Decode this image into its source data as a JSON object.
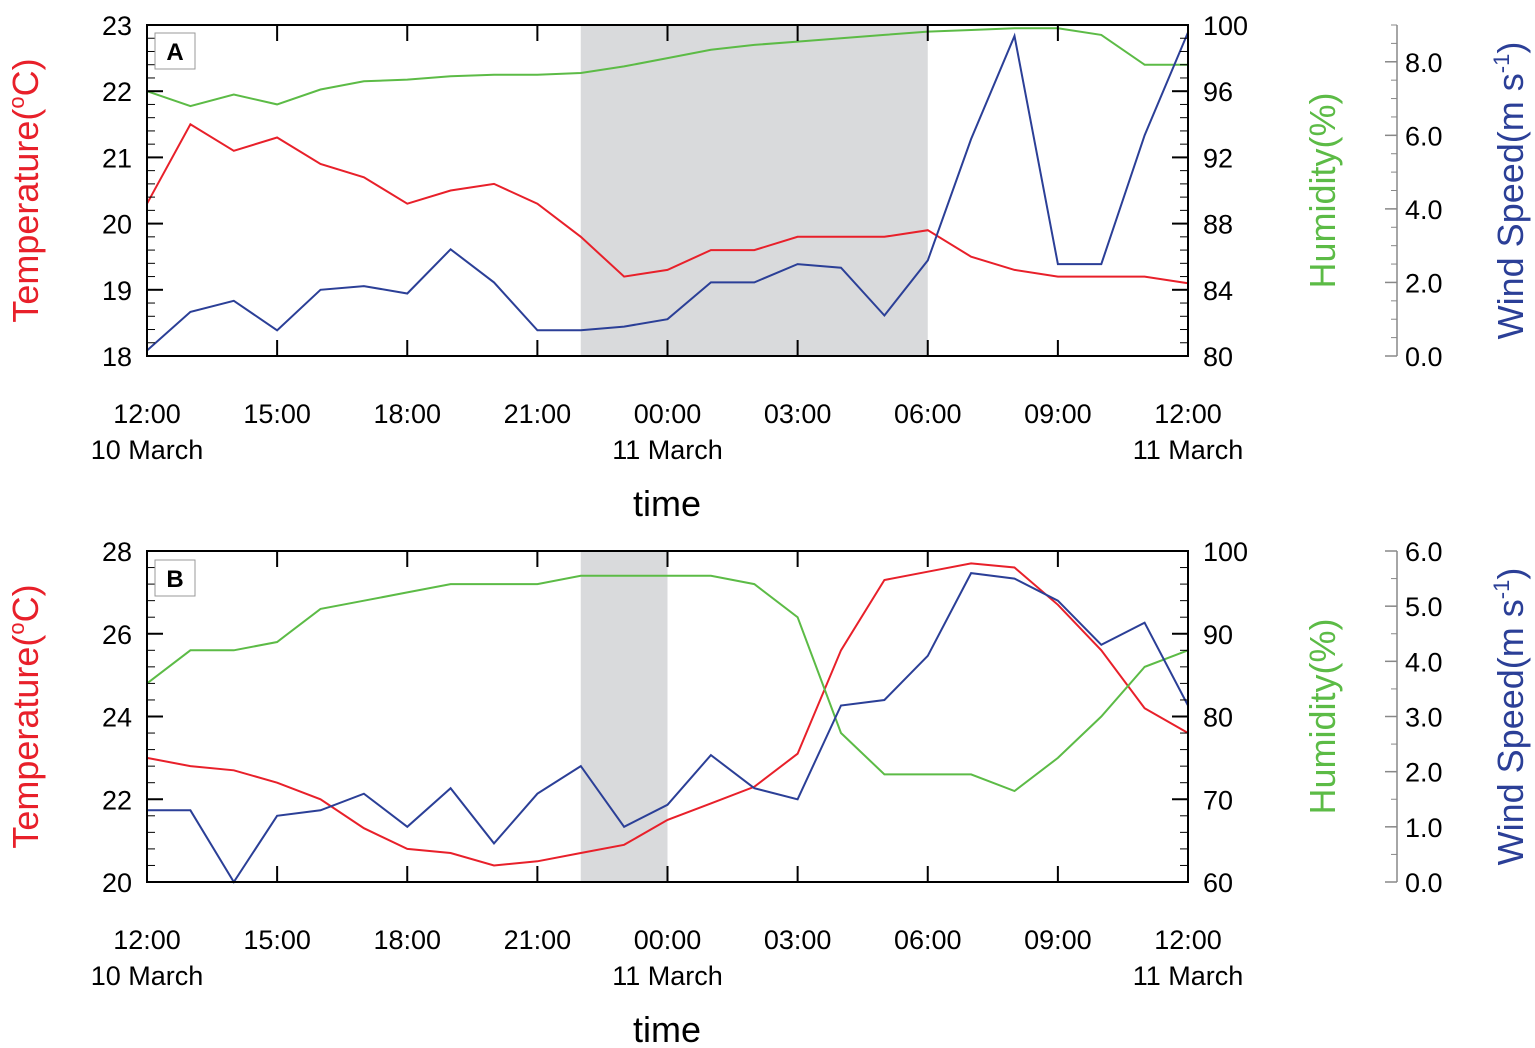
{
  "colors": {
    "temperature": "#e8202a",
    "humidity": "#5cbb46",
    "wind": "#2b3f97",
    "shade": "#d9dadc",
    "axis": "#000000",
    "wind_axis": "#888888"
  },
  "chart_data": [
    {
      "type": "line",
      "panel_label": "A",
      "x": [
        "12:00",
        "13:00",
        "14:00",
        "15:00",
        "16:00",
        "17:00",
        "18:00",
        "19:00",
        "20:00",
        "21:00",
        "22:00",
        "23:00",
        "00:00",
        "01:00",
        "02:00",
        "03:00",
        "04:00",
        "05:00",
        "06:00",
        "07:00",
        "08:00",
        "09:00",
        "10:00",
        "11:00",
        "12:00"
      ],
      "xlabel": "time",
      "x_tick_labels": [
        {
          "index": 0,
          "time": "12:00",
          "date": "10 March"
        },
        {
          "index": 3,
          "time": "15:00",
          "date": ""
        },
        {
          "index": 6,
          "time": "18:00",
          "date": ""
        },
        {
          "index": 9,
          "time": "21:00",
          "date": ""
        },
        {
          "index": 12,
          "time": "00:00",
          "date": "11 March"
        },
        {
          "index": 15,
          "time": "03:00",
          "date": ""
        },
        {
          "index": 18,
          "time": "06:00",
          "date": ""
        },
        {
          "index": 21,
          "time": "09:00",
          "date": ""
        },
        {
          "index": 24,
          "time": "12:00",
          "date": "11 March"
        }
      ],
      "shaded_period": [
        "22:00",
        "06:00"
      ],
      "series": [
        {
          "name": "Temperature",
          "axis": "left",
          "values": [
            20.3,
            21.5,
            21.1,
            21.3,
            20.9,
            20.7,
            20.3,
            20.5,
            20.6,
            20.3,
            19.8,
            19.2,
            19.3,
            19.6,
            19.6,
            19.8,
            19.8,
            19.8,
            19.9,
            19.5,
            19.3,
            19.2,
            19.2,
            19.2,
            19.1
          ]
        },
        {
          "name": "Humidity",
          "axis": "right",
          "values": [
            96.0,
            95.1,
            95.8,
            95.2,
            96.1,
            96.6,
            96.7,
            96.9,
            97.0,
            97.0,
            97.1,
            97.5,
            98.0,
            98.5,
            98.8,
            99.0,
            99.2,
            99.4,
            99.6,
            99.7,
            99.8,
            99.8,
            99.4,
            97.6,
            97.6
          ]
        },
        {
          "name": "Wind Speed",
          "axis": "far-right",
          "values": [
            0.15,
            1.2,
            1.5,
            0.7,
            1.8,
            1.9,
            1.7,
            2.9,
            2.0,
            0.7,
            0.7,
            0.8,
            1.0,
            2.0,
            2.0,
            2.5,
            2.4,
            1.1,
            2.6,
            5.9,
            8.7,
            2.5,
            2.5,
            6.0,
            8.8
          ]
        }
      ],
      "axes": {
        "left": {
          "label": "Temperature(°C)",
          "label_main": "Temperature(",
          "label_sup": "o",
          "label_end": "C)",
          "range": [
            18,
            23
          ],
          "ticks": [
            "18",
            "19",
            "20",
            "21",
            "22",
            "23"
          ]
        },
        "right": {
          "label": "Humidity(%)",
          "range": [
            80,
            100
          ],
          "ticks": [
            "80",
            "84",
            "88",
            "92",
            "96",
            "100"
          ]
        },
        "far_right": {
          "label": "Wind Speed(m s⁻¹)",
          "label_main": "Wind Speed(m s",
          "label_sup": "-1",
          "label_end": ")",
          "range": [
            0,
            9
          ],
          "ticks": [
            "0.0",
            "2.0",
            "4.0",
            "6.0",
            "8.0"
          ]
        }
      }
    },
    {
      "type": "line",
      "panel_label": "B",
      "x": [
        "12:00",
        "13:00",
        "14:00",
        "15:00",
        "16:00",
        "17:00",
        "18:00",
        "19:00",
        "20:00",
        "21:00",
        "22:00",
        "23:00",
        "00:00",
        "01:00",
        "02:00",
        "03:00",
        "04:00",
        "05:00",
        "06:00",
        "07:00",
        "08:00",
        "09:00",
        "10:00",
        "11:00",
        "12:00"
      ],
      "xlabel": "time",
      "x_tick_labels": [
        {
          "index": 0,
          "time": "12:00",
          "date": "10 March"
        },
        {
          "index": 3,
          "time": "15:00",
          "date": ""
        },
        {
          "index": 6,
          "time": "18:00",
          "date": ""
        },
        {
          "index": 9,
          "time": "21:00",
          "date": ""
        },
        {
          "index": 12,
          "time": "00:00",
          "date": "11 March"
        },
        {
          "index": 15,
          "time": "03:00",
          "date": ""
        },
        {
          "index": 18,
          "time": "06:00",
          "date": ""
        },
        {
          "index": 21,
          "time": "09:00",
          "date": ""
        },
        {
          "index": 24,
          "time": "12:00",
          "date": "11 March"
        }
      ],
      "shaded_period": [
        "22:00",
        "00:00"
      ],
      "series": [
        {
          "name": "Temperature",
          "axis": "left",
          "values": [
            23.0,
            22.8,
            22.7,
            22.4,
            22.0,
            21.3,
            20.8,
            20.7,
            20.4,
            20.5,
            20.7,
            20.9,
            21.5,
            21.9,
            22.3,
            23.1,
            25.6,
            27.3,
            27.5,
            27.7,
            27.6,
            26.7,
            25.6,
            24.2,
            23.6
          ]
        },
        {
          "name": "Humidity",
          "axis": "right",
          "values": [
            84,
            88,
            88,
            89,
            93,
            94,
            95,
            96,
            96,
            96,
            97,
            97,
            97,
            97,
            96,
            92,
            78,
            73,
            73,
            73,
            71,
            75,
            80,
            86,
            88
          ]
        },
        {
          "name": "Wind Speed",
          "axis": "far-right",
          "values": [
            1.3,
            1.3,
            0.0,
            1.2,
            1.3,
            1.6,
            1.0,
            1.7,
            0.7,
            1.6,
            2.1,
            1.0,
            1.4,
            2.3,
            1.7,
            1.5,
            3.2,
            3.3,
            4.1,
            5.6,
            5.5,
            5.1,
            4.3,
            4.7,
            3.2
          ]
        }
      ],
      "axes": {
        "left": {
          "label": "Temperature(°C)",
          "label_main": "Temperature(",
          "label_sup": "o",
          "label_end": "C)",
          "range": [
            20,
            28
          ],
          "ticks": [
            "20",
            "22",
            "24",
            "26",
            "28"
          ]
        },
        "right": {
          "label": "Humidity(%)",
          "range": [
            60,
            100
          ],
          "ticks": [
            "60",
            "70",
            "80",
            "90",
            "100"
          ]
        },
        "far_right": {
          "label": "Wind Speed(m s⁻¹)",
          "label_main": "Wind Speed(m s",
          "label_sup": "-1",
          "label_end": ")",
          "range": [
            0,
            6
          ],
          "ticks": [
            "0.0",
            "1.0",
            "2.0",
            "3.0",
            "4.0",
            "5.0",
            "6.0"
          ]
        }
      }
    }
  ]
}
